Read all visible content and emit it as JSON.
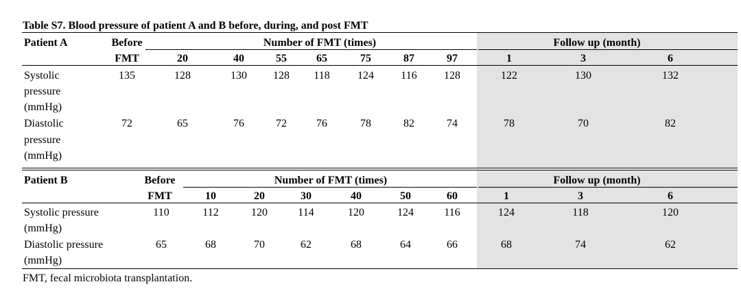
{
  "caption": "Table S7. Blood pressure of patient A and B before, during, and post FMT",
  "footnote": "FMT, fecal microbiota transplantation.",
  "colors": {
    "follow_up_shade": "#e3e3e3",
    "rule": "#000000"
  },
  "table_a": {
    "patient_header": "Patient A",
    "before_line1": "Before",
    "before_line2": "FMT",
    "fmt_group_header": "Number of FMT (times)",
    "followup_header": "Follow up (month)",
    "fmt_columns": [
      "20",
      "40",
      "55",
      "65",
      "75",
      "87",
      "97"
    ],
    "followup_columns": [
      "1",
      "3",
      "6"
    ],
    "rows": [
      {
        "label_lines": [
          "Systolic",
          "pressure",
          "(mmHg)"
        ],
        "before": "135",
        "fmt_values": [
          "128",
          "130",
          "128",
          "118",
          "124",
          "116",
          "128"
        ],
        "followup_values": [
          "122",
          "130",
          "132"
        ]
      },
      {
        "label_lines": [
          "Diastolic",
          "pressure",
          "(mmHg)"
        ],
        "before": "72",
        "fmt_values": [
          "65",
          "76",
          "72",
          "76",
          "78",
          "82",
          "74"
        ],
        "followup_values": [
          "78",
          "70",
          "82"
        ]
      }
    ]
  },
  "table_b": {
    "patient_header": "Patient B",
    "before_line1": "Before",
    "before_line2": "FMT",
    "fmt_group_header": "Number of FMT (times)",
    "followup_header": "Follow up (month)",
    "fmt_columns": [
      "10",
      "20",
      "30",
      "40",
      "50",
      "60"
    ],
    "followup_columns": [
      "1",
      "3",
      "6"
    ],
    "rows": [
      {
        "label_lines": [
          "Systolic pressure",
          "(mmHg)"
        ],
        "before": "110",
        "fmt_values": [
          "112",
          "120",
          "114",
          "120",
          "124",
          "116"
        ],
        "followup_values": [
          "124",
          "118",
          "120"
        ]
      },
      {
        "label_lines": [
          "Diastolic pressure",
          "(mmHg)"
        ],
        "before": "65",
        "fmt_values": [
          "68",
          "70",
          "62",
          "68",
          "64",
          "66"
        ],
        "followup_values": [
          "68",
          "74",
          "62"
        ]
      }
    ]
  }
}
